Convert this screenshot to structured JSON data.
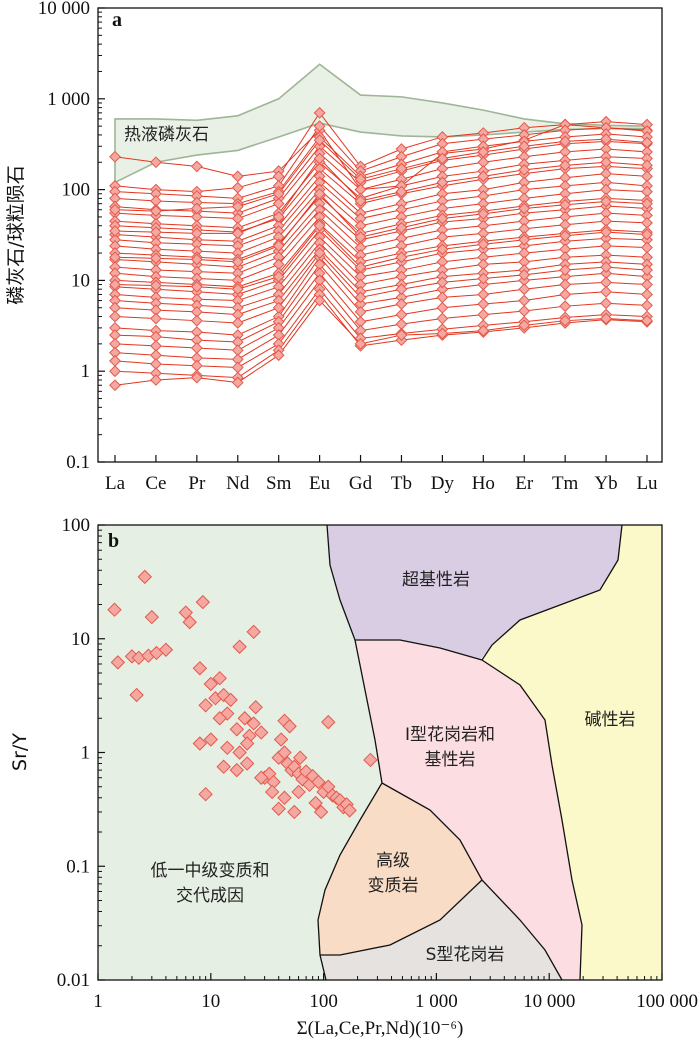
{
  "chart_data": [
    {
      "type": "line",
      "panel": "a",
      "ylabel": "磷灰石/球粒陨石",
      "xlabel": "",
      "yscale": "log",
      "ylim": [
        0.1,
        10000
      ],
      "y_ticks": [
        "0.1",
        "1",
        "10",
        "100",
        "1 000",
        "10 000"
      ],
      "categories": [
        "La",
        "Ce",
        "Pr",
        "Nd",
        "Sm",
        "Eu",
        "Gd",
        "Tb",
        "Dy",
        "Ho",
        "Er",
        "Tm",
        "Yb",
        "Lu"
      ],
      "band_label": "热液磷灰石",
      "band_upper": [
        600,
        600,
        580,
        650,
        1000,
        2400,
        1100,
        1050,
        900,
        750,
        600,
        530,
        510,
        500
      ],
      "band_lower": [
        120,
        200,
        240,
        270,
        380,
        540,
        430,
        390,
        380,
        400,
        430,
        460,
        470,
        470
      ],
      "colors": {
        "line": "#e2361f",
        "marker_fill": "#f5a7a2",
        "marker_stroke": "#e25b4c",
        "band_fill": "#e9f1e6",
        "band_stroke": "#9fb596"
      },
      "series": [
        {
          "values": [
            230,
            200,
            180,
            140,
            160,
            450,
            100,
            110,
            250,
            280,
            350,
            520,
            480,
            450
          ]
        },
        {
          "values": [
            110,
            100,
            95,
            105,
            140,
            700,
            180,
            280,
            380,
            420,
            480,
            520,
            560,
            520
          ]
        },
        {
          "values": [
            95,
            90,
            85,
            80,
            110,
            500,
            160,
            230,
            320,
            360,
            400,
            450,
            480,
            440
          ]
        },
        {
          "values": [
            80,
            75,
            72,
            70,
            95,
            380,
            140,
            190,
            260,
            300,
            340,
            380,
            410,
            380
          ]
        },
        {
          "values": [
            65,
            60,
            58,
            55,
            80,
            300,
            120,
            160,
            210,
            240,
            280,
            320,
            340,
            320
          ]
        },
        {
          "values": [
            55,
            52,
            50,
            48,
            70,
            250,
            100,
            130,
            170,
            200,
            230,
            260,
            280,
            260
          ]
        },
        {
          "values": [
            45,
            42,
            40,
            38,
            55,
            200,
            80,
            110,
            140,
            160,
            190,
            210,
            230,
            220
          ]
        },
        {
          "values": [
            40,
            38,
            36,
            34,
            48,
            170,
            70,
            90,
            110,
            130,
            150,
            170,
            180,
            170
          ]
        },
        {
          "values": [
            32,
            30,
            28,
            27,
            40,
            140,
            55,
            70,
            90,
            100,
            120,
            135,
            150,
            140
          ]
        },
        {
          "values": [
            28,
            26,
            25,
            24,
            35,
            120,
            48,
            60,
            75,
            85,
            100,
            110,
            120,
            110
          ]
        },
        {
          "values": [
            24,
            22,
            21,
            20,
            30,
            100,
            40,
            50,
            62,
            70,
            80,
            90,
            100,
            95
          ]
        },
        {
          "values": [
            20,
            19,
            18,
            17,
            25,
            85,
            33,
            42,
            52,
            58,
            66,
            74,
            80,
            76
          ]
        },
        {
          "values": [
            17,
            16,
            15,
            14,
            21,
            70,
            28,
            35,
            44,
            48,
            55,
            60,
            66,
            62
          ]
        },
        {
          "values": [
            14,
            13,
            12.5,
            12,
            18,
            60,
            23,
            29,
            36,
            40,
            45,
            50,
            55,
            52
          ]
        },
        {
          "values": [
            12,
            11,
            10.5,
            10,
            15,
            50,
            19,
            24,
            30,
            33,
            37,
            41,
            45,
            43
          ]
        },
        {
          "values": [
            10,
            9.5,
            9,
            8.5,
            12,
            42,
            16,
            20,
            24,
            27,
            30,
            33,
            36,
            34
          ]
        },
        {
          "values": [
            8.5,
            8,
            7.5,
            7,
            10,
            36,
            13,
            16,
            20,
            22,
            24,
            27,
            29,
            28
          ]
        },
        {
          "values": [
            7,
            6.5,
            6.2,
            6,
            8.5,
            30,
            11,
            13,
            16,
            18,
            20,
            22,
            24,
            23
          ]
        },
        {
          "values": [
            6,
            5.6,
            5.3,
            5,
            7,
            26,
            9,
            11,
            13,
            15,
            16,
            18,
            19,
            18
          ]
        },
        {
          "values": [
            5,
            4.7,
            4.5,
            4.2,
            6,
            22,
            7.5,
            9,
            11,
            12,
            13,
            15,
            16,
            15
          ]
        },
        {
          "values": [
            3,
            2.8,
            2.7,
            2.5,
            4,
            18,
            5.5,
            6.5,
            8,
            9,
            10,
            11,
            12,
            11
          ]
        },
        {
          "values": [
            2.5,
            2.4,
            2.2,
            2.1,
            3.5,
            15,
            4.5,
            5.5,
            6.5,
            7,
            8,
            9,
            9.5,
            9
          ]
        },
        {
          "values": [
            2,
            1.9,
            1.8,
            1.7,
            3,
            12,
            3.5,
            4.2,
            5,
            5.5,
            6,
            7,
            7.5,
            7
          ]
        },
        {
          "values": [
            1.6,
            1.5,
            1.4,
            1.35,
            2.5,
            10,
            2.8,
            3.3,
            3.8,
            4.2,
            4.6,
            5.2,
            5.6,
            5.3
          ]
        },
        {
          "values": [
            1.3,
            1.2,
            1.15,
            1.1,
            2,
            8,
            2.3,
            2.6,
            2.9,
            3.2,
            3.5,
            3.9,
            4.2,
            4
          ]
        },
        {
          "values": [
            1.0,
            0.95,
            0.9,
            0.85,
            1.7,
            7,
            1.9,
            2.2,
            2.5,
            2.7,
            3,
            3.4,
            3.7,
            3.5
          ]
        },
        {
          "values": [
            0.7,
            0.8,
            0.85,
            0.75,
            1.5,
            6,
            2.0,
            2.5,
            2.6,
            2.8,
            3.2,
            3.6,
            3.8,
            3.6
          ]
        },
        {
          "values": [
            60,
            58,
            62,
            65,
            90,
            350,
            130,
            170,
            220,
            260,
            300,
            340,
            360,
            330
          ]
        },
        {
          "values": [
            35,
            34,
            33,
            33,
            50,
            220,
            75,
            95,
            120,
            140,
            165,
            185,
            200,
            185
          ]
        },
        {
          "values": [
            18,
            17.5,
            17,
            16,
            24,
            90,
            30,
            38,
            48,
            54,
            62,
            68,
            74,
            70
          ]
        },
        {
          "values": [
            9,
            8.8,
            8.5,
            8,
            11,
            40,
            14,
            18,
            22,
            25,
            28,
            31,
            34,
            32
          ]
        },
        {
          "values": [
            4,
            3.8,
            3.6,
            3.4,
            5,
            20,
            6.5,
            8,
            9.5,
            10.5,
            11.5,
            13,
            14,
            13
          ]
        }
      ]
    },
    {
      "type": "scatter",
      "panel": "b",
      "xlabel": "Σ(La,Ce,Pr,Nd)(10⁻⁶)",
      "ylabel": "Sr/Y",
      "xscale": "log",
      "yscale": "log",
      "xlim": [
        1,
        100000
      ],
      "ylim": [
        0.01,
        100
      ],
      "x_ticks": [
        "1",
        "10",
        "100",
        "1 000",
        "10 000",
        "100 000"
      ],
      "y_ticks": [
        "0.01",
        "0.1",
        "1",
        "10",
        "100"
      ],
      "regions": [
        {
          "label_lines": [
            "低一中级变质和",
            "交代成因"
          ],
          "fill": "#e6efe3"
        },
        {
          "label_lines": [
            "超基性岩"
          ],
          "fill": "#d9cde3"
        },
        {
          "label_lines": [
            "I型花岗岩和",
            "基性岩"
          ],
          "fill": "#fbdde2"
        },
        {
          "label_lines": [
            "碱性岩"
          ],
          "fill": "#fbf8c9"
        },
        {
          "label_lines": [
            "高级",
            "变质岩"
          ],
          "fill": "#f8dcc6"
        },
        {
          "label_lines": [
            "S型花岗岩"
          ],
          "fill": "#e5e2e0"
        }
      ],
      "points": [
        {
          "x": 1.4,
          "y": 18
        },
        {
          "x": 2.6,
          "y": 35
        },
        {
          "x": 3.0,
          "y": 15.5
        },
        {
          "x": 6.0,
          "y": 17
        },
        {
          "x": 6.5,
          "y": 14
        },
        {
          "x": 8.5,
          "y": 21
        },
        {
          "x": 1.5,
          "y": 6.2
        },
        {
          "x": 2.0,
          "y": 7.0
        },
        {
          "x": 2.3,
          "y": 6.8
        },
        {
          "x": 2.8,
          "y": 7.1
        },
        {
          "x": 3.3,
          "y": 7.5
        },
        {
          "x": 4.0,
          "y": 8.0
        },
        {
          "x": 2.2,
          "y": 3.2
        },
        {
          "x": 8.0,
          "y": 5.5
        },
        {
          "x": 12,
          "y": 4.5
        },
        {
          "x": 18,
          "y": 8.5
        },
        {
          "x": 24,
          "y": 11.5
        },
        {
          "x": 10,
          "y": 4.0
        },
        {
          "x": 11,
          "y": 3.0
        },
        {
          "x": 13,
          "y": 3.2
        },
        {
          "x": 15,
          "y": 2.9
        },
        {
          "x": 9,
          "y": 2.6
        },
        {
          "x": 14,
          "y": 2.2
        },
        {
          "x": 20,
          "y": 2.0
        },
        {
          "x": 25,
          "y": 2.5
        },
        {
          "x": 12,
          "y": 2.0
        },
        {
          "x": 17,
          "y": 1.6
        },
        {
          "x": 22,
          "y": 1.4
        },
        {
          "x": 8,
          "y": 1.2
        },
        {
          "x": 10,
          "y": 1.3
        },
        {
          "x": 14,
          "y": 1.1
        },
        {
          "x": 18,
          "y": 1.0
        },
        {
          "x": 21,
          "y": 1.2
        },
        {
          "x": 24,
          "y": 1.8
        },
        {
          "x": 28,
          "y": 1.5
        },
        {
          "x": 45,
          "y": 1.9
        },
        {
          "x": 50,
          "y": 1.7
        },
        {
          "x": 110,
          "y": 1.85
        },
        {
          "x": 13,
          "y": 0.75
        },
        {
          "x": 17,
          "y": 0.7
        },
        {
          "x": 21,
          "y": 0.8
        },
        {
          "x": 9,
          "y": 0.43
        },
        {
          "x": 30,
          "y": 0.6
        },
        {
          "x": 33,
          "y": 0.65
        },
        {
          "x": 36,
          "y": 0.55
        },
        {
          "x": 40,
          "y": 0.9
        },
        {
          "x": 45,
          "y": 1.0
        },
        {
          "x": 48,
          "y": 0.8
        },
        {
          "x": 52,
          "y": 0.7
        },
        {
          "x": 55,
          "y": 0.75
        },
        {
          "x": 60,
          "y": 0.65
        },
        {
          "x": 65,
          "y": 0.58
        },
        {
          "x": 70,
          "y": 0.68
        },
        {
          "x": 75,
          "y": 0.52
        },
        {
          "x": 80,
          "y": 0.62
        },
        {
          "x": 90,
          "y": 0.55
        },
        {
          "x": 100,
          "y": 0.45
        },
        {
          "x": 110,
          "y": 0.5
        },
        {
          "x": 120,
          "y": 0.42
        },
        {
          "x": 130,
          "y": 0.4
        },
        {
          "x": 140,
          "y": 0.38
        },
        {
          "x": 150,
          "y": 0.33
        },
        {
          "x": 160,
          "y": 0.35
        },
        {
          "x": 170,
          "y": 0.31
        },
        {
          "x": 40,
          "y": 0.32
        },
        {
          "x": 45,
          "y": 0.4
        },
        {
          "x": 55,
          "y": 0.3
        },
        {
          "x": 60,
          "y": 0.45
        },
        {
          "x": 85,
          "y": 0.36
        },
        {
          "x": 95,
          "y": 0.3
        },
        {
          "x": 260,
          "y": 0.86
        },
        {
          "x": 35,
          "y": 0.45
        },
        {
          "x": 42,
          "y": 1.3
        },
        {
          "x": 62,
          "y": 0.9
        },
        {
          "x": 28,
          "y": 0.6
        }
      ],
      "colors": {
        "marker_fill": "#f5a7a2",
        "marker_stroke": "#e25b4c"
      }
    }
  ]
}
